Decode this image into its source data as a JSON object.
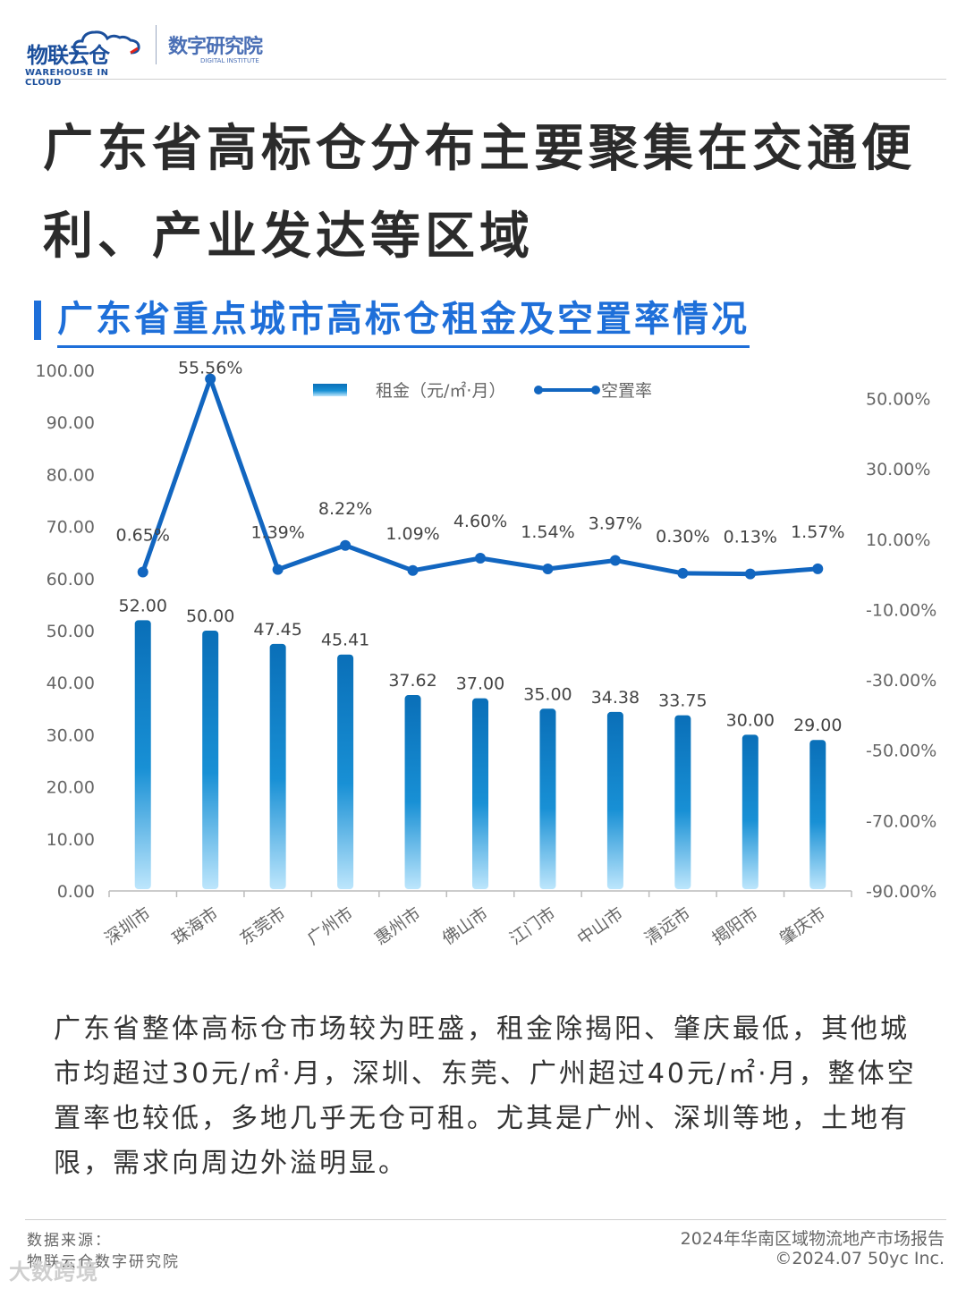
{
  "brand": {
    "logo_cn": "物联云仓",
    "logo_en": "WAREHOUSE IN CLOUD",
    "institute_cn": "数字研究院",
    "institute_en": "DIGITAL INSTITUTE"
  },
  "title": "广东省高标仓分布主要聚集在交通便利、产业发达等区域",
  "subtitle": "广东省重点城市高标仓租金及空置率情况",
  "chart_data": {
    "type": "bar+line",
    "categories": [
      "深圳市",
      "珠海市",
      "东莞市",
      "广州市",
      "惠州市",
      "佛山市",
      "江门市",
      "中山市",
      "清远市",
      "揭阳市",
      "肇庆市"
    ],
    "series": [
      {
        "name": "租金（元/㎡·月）",
        "type": "bar",
        "axis": "left",
        "values": [
          52.0,
          50.0,
          47.45,
          45.41,
          37.62,
          37.0,
          35.0,
          34.38,
          33.75,
          30.0,
          29.0
        ],
        "labels": [
          "52.00",
          "50.00",
          "47.45",
          "45.41",
          "37.62",
          "37.00",
          "35.00",
          "34.38",
          "33.75",
          "30.00",
          "29.00"
        ]
      },
      {
        "name": "空置率",
        "type": "line",
        "axis": "right",
        "values": [
          0.65,
          55.56,
          1.39,
          8.22,
          1.09,
          4.6,
          1.54,
          3.97,
          0.3,
          0.13,
          1.57
        ],
        "labels": [
          "0.65%",
          "55.56%",
          "1.39%",
          "8.22%",
          "1.09%",
          "4.60%",
          "1.54%",
          "3.97%",
          "0.30%",
          "0.13%",
          "1.57%"
        ]
      }
    ],
    "left_axis": {
      "ylim": [
        0,
        100
      ],
      "ticks": [
        "0.00",
        "10.00",
        "20.00",
        "30.00",
        "40.00",
        "50.00",
        "60.00",
        "70.00",
        "80.00",
        "90.00",
        "100.00"
      ]
    },
    "right_axis": {
      "ylim": [
        -90,
        58
      ],
      "ticks": [
        {
          "v": 50,
          "label": "50.00%"
        },
        {
          "v": 30,
          "label": "30.00%"
        },
        {
          "v": 10,
          "label": "10.00%"
        },
        {
          "v": -10,
          "label": "-10.00%"
        },
        {
          "v": -30,
          "label": "-30.00%"
        },
        {
          "v": -50,
          "label": "-50.00%"
        },
        {
          "v": -70,
          "label": "-70.00%"
        },
        {
          "v": -90,
          "label": "-90.00%"
        }
      ]
    },
    "legend_position": "top-center",
    "grid": false,
    "colors": {
      "bar_top": "#0a6fb8",
      "bar_bottom": "#b8e3fb",
      "line": "#1266c0",
      "axis_text": "#666666"
    }
  },
  "paragraph": "广东省整体高标仓市场较为旺盛，租金除揭阳、肇庆最低，其他城市均超过30元/㎡·月，深圳、东莞、广州超过40元/㎡·月，整体空置率也较低，多地几乎无仓可租。尤其是广州、深圳等地，土地有限，需求向周边外溢明显。",
  "footer": {
    "source_label": "数据来源：",
    "source_name": "物联云仓数字研究院",
    "report_name": "2024年华南区域物流地产市场报告",
    "copyright": "©2024.07 50yc Inc.",
    "watermark": "大数跨境"
  }
}
